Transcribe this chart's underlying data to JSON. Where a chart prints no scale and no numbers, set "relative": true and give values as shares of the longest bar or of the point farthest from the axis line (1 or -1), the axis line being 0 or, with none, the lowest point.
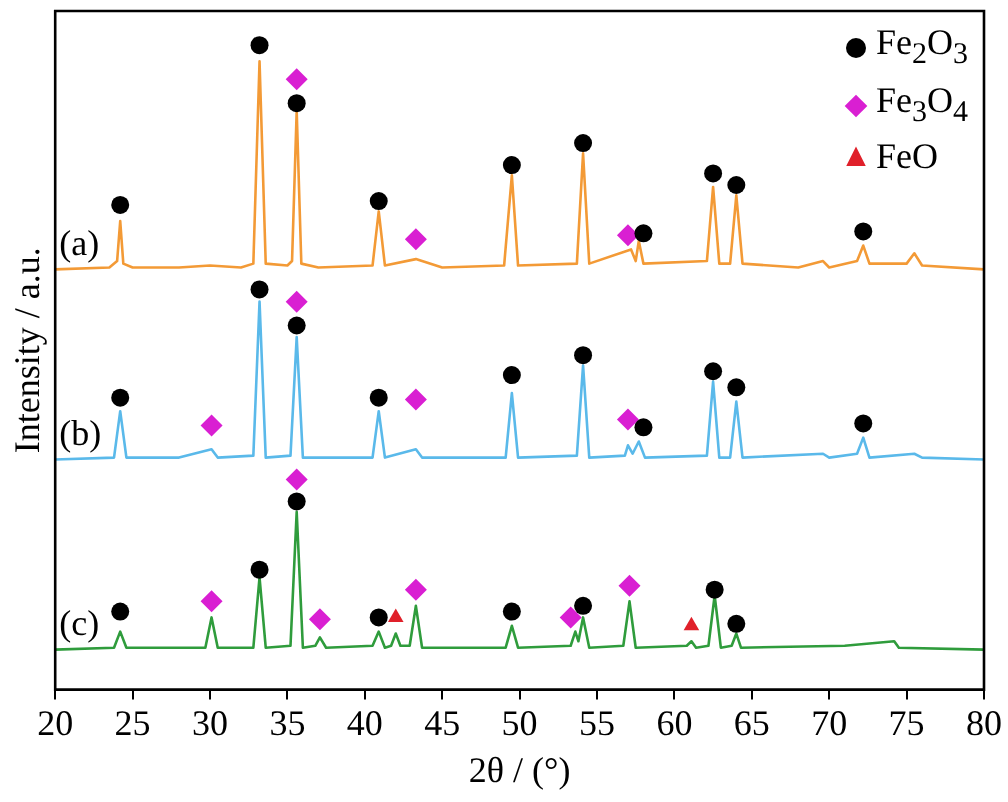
{
  "chart_data": {
    "type": "line",
    "relative": true,
    "xlabel": "2θ / (°)",
    "ylabel": "Intensity / a.u.",
    "xlim": [
      20,
      80
    ],
    "xticks": [
      20,
      25,
      30,
      35,
      40,
      45,
      50,
      55,
      60,
      65,
      70,
      75,
      80
    ],
    "grid": false,
    "legend": "top right",
    "tick_labels": "x",
    "series": [
      {
        "name": "(a)",
        "type": "line",
        "marker": "none",
        "color": "#f39a36",
        "x": [
          20,
          23.5,
          24.0,
          24.2,
          24.4,
          25,
          28,
          30,
          32,
          32.8,
          33.2,
          33.6,
          35,
          35.3,
          35.6,
          35.9,
          37,
          40.5,
          40.9,
          41.3,
          43.3,
          45,
          49,
          49.5,
          49.9,
          53.7,
          54.1,
          54.5,
          57.2,
          57.5,
          57.7,
          58,
          62.1,
          62.5,
          62.9,
          63.6,
          64.0,
          64.4,
          68,
          69.6,
          70,
          71.8,
          72.2,
          72.6,
          75,
          75.5,
          76,
          80
        ],
        "values": [
          0.652,
          0.655,
          0.665,
          0.727,
          0.661,
          0.655,
          0.655,
          0.658,
          0.655,
          0.661,
          0.975,
          0.661,
          0.658,
          0.665,
          0.898,
          0.661,
          0.655,
          0.658,
          0.742,
          0.658,
          0.668,
          0.655,
          0.658,
          0.798,
          0.658,
          0.661,
          0.832,
          0.661,
          0.683,
          0.665,
          0.696,
          0.661,
          0.665,
          0.78,
          0.661,
          0.661,
          0.767,
          0.661,
          0.655,
          0.665,
          0.655,
          0.665,
          0.689,
          0.661,
          0.661,
          0.677,
          0.658,
          0.652
        ]
      },
      {
        "name": "(b)",
        "type": "line",
        "marker": "none",
        "color": "#5ab9ea",
        "x": [
          20,
          23.8,
          24.2,
          24.6,
          28,
          30.1,
          30.5,
          32.8,
          33.2,
          33.6,
          35.2,
          35.6,
          36,
          40.5,
          40.9,
          41.3,
          43.3,
          43.7,
          49.1,
          49.5,
          49.9,
          53.7,
          54.1,
          54.5,
          56.8,
          57.0,
          57.3,
          57.7,
          58.1,
          62.1,
          62.5,
          62.9,
          63.6,
          64.0,
          64.4,
          69.6,
          70,
          71.8,
          72.2,
          72.6,
          75.5,
          76,
          80
        ],
        "values": [
          0.357,
          0.36,
          0.432,
          0.36,
          0.36,
          0.373,
          0.36,
          0.363,
          0.602,
          0.36,
          0.363,
          0.547,
          0.36,
          0.36,
          0.432,
          0.36,
          0.373,
          0.36,
          0.36,
          0.46,
          0.36,
          0.363,
          0.503,
          0.36,
          0.363,
          0.379,
          0.366,
          0.385,
          0.36,
          0.363,
          0.478,
          0.36,
          0.36,
          0.447,
          0.36,
          0.366,
          0.36,
          0.366,
          0.391,
          0.36,
          0.366,
          0.36,
          0.357
        ]
      },
      {
        "name": "(c)",
        "type": "line",
        "marker": "none",
        "color": "#2f9c3c",
        "x": [
          20,
          23.8,
          24.2,
          24.6,
          29.7,
          30.1,
          30.5,
          32.8,
          33.2,
          33.6,
          35.2,
          35.6,
          36,
          36.8,
          37.1,
          37.5,
          40.5,
          40.9,
          41.3,
          41.7,
          42.0,
          42.3,
          42.9,
          43.3,
          43.7,
          49.1,
          49.5,
          49.9,
          53.3,
          53.6,
          53.8,
          54.1,
          54.5,
          56.7,
          57.1,
          57.5,
          60.8,
          61.1,
          61.4,
          62.2,
          62.6,
          63.0,
          63.7,
          64.0,
          64.3,
          71,
          74.2,
          74.5,
          80
        ],
        "values": [
          0.062,
          0.065,
          0.09,
          0.065,
          0.065,
          0.112,
          0.065,
          0.065,
          0.174,
          0.065,
          0.068,
          0.276,
          0.065,
          0.068,
          0.081,
          0.065,
          0.068,
          0.09,
          0.065,
          0.068,
          0.087,
          0.068,
          0.068,
          0.13,
          0.065,
          0.065,
          0.099,
          0.065,
          0.068,
          0.09,
          0.075,
          0.112,
          0.065,
          0.068,
          0.137,
          0.065,
          0.068,
          0.075,
          0.065,
          0.068,
          0.146,
          0.065,
          0.068,
          0.087,
          0.065,
          0.068,
          0.075,
          0.065,
          0.062
        ]
      },
      {
        "name": "Fe$_{2}$O$_{3}$",
        "type": "scatter",
        "marker": "circle",
        "color": "#000000",
        "x": [
          24.2,
          33.2,
          35.6,
          40.9,
          49.5,
          54.1,
          58.0,
          62.5,
          64.0,
          72.2,
          24.2,
          33.2,
          35.6,
          40.9,
          49.5,
          54.1,
          58.0,
          62.5,
          64.0,
          72.2,
          24.2,
          33.2,
          35.6,
          40.9,
          49.5,
          54.1,
          62.6,
          64.0
        ],
        "values": [
          0.752,
          1.0,
          0.91,
          0.758,
          0.814,
          0.848,
          0.708,
          0.801,
          0.783,
          0.711,
          0.453,
          0.621,
          0.565,
          0.453,
          0.488,
          0.519,
          0.407,
          0.494,
          0.469,
          0.413,
          0.121,
          0.186,
          0.292,
          0.112,
          0.121,
          0.13,
          0.155,
          0.102
        ]
      },
      {
        "name": "Fe$_{3}$O$_{4}$",
        "type": "scatter",
        "marker": "diamond",
        "color": "#d91fd2",
        "x": [
          35.6,
          43.3,
          57.0,
          30.1,
          35.6,
          43.3,
          57.0,
          30.1,
          35.6,
          37.1,
          43.3,
          53.3,
          57.1
        ],
        "values": [
          0.947,
          0.699,
          0.705,
          0.41,
          0.602,
          0.45,
          0.419,
          0.137,
          0.326,
          0.109,
          0.155,
          0.112,
          0.161
        ]
      },
      {
        "name": "FeO",
        "type": "scatter",
        "marker": "triangle",
        "color": "#e0202a",
        "x": [
          42.0,
          61.1
        ],
        "values": [
          0.112,
          0.099
        ]
      }
    ]
  }
}
